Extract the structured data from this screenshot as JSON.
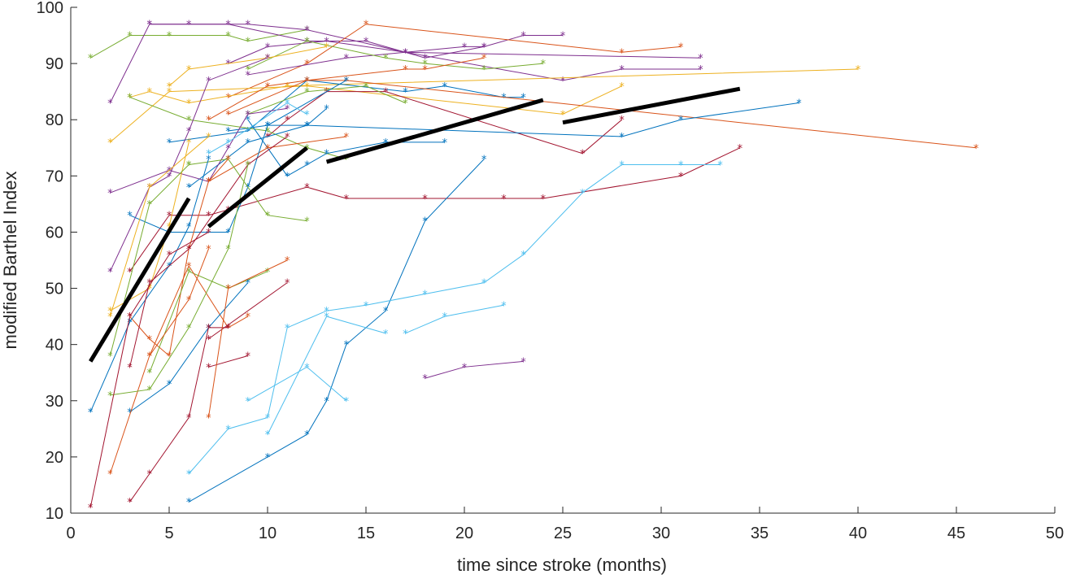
{
  "chart_data": {
    "type": "line",
    "title": "",
    "xlabel": "time since stroke (months)",
    "ylabel": "modified Barthel Index",
    "xlim": [
      0,
      50
    ],
    "ylim": [
      10,
      100
    ],
    "xticks": [
      0,
      5,
      10,
      15,
      20,
      25,
      30,
      35,
      40,
      45,
      50
    ],
    "yticks": [
      10,
      20,
      30,
      40,
      50,
      60,
      70,
      80,
      90,
      100
    ],
    "grid": false,
    "legend": "none",
    "marker": "*",
    "colors": [
      "#0072bd",
      "#d95319",
      "#edb120",
      "#7e2f8e",
      "#77ac30",
      "#4dbeee",
      "#a2142f"
    ],
    "series": [
      {
        "color": "#77ac30",
        "points": [
          [
            1,
            91
          ],
          [
            3,
            95
          ],
          [
            5,
            95
          ],
          [
            8,
            95
          ],
          [
            9,
            94
          ],
          [
            12,
            96
          ]
        ]
      },
      {
        "color": "#7e2f8e",
        "points": [
          [
            2,
            83
          ],
          [
            4,
            97
          ],
          [
            6,
            97
          ],
          [
            9,
            97
          ],
          [
            12,
            96
          ],
          [
            17,
            92
          ],
          [
            25,
            87
          ],
          [
            28,
            89
          ],
          [
            32,
            89
          ]
        ]
      },
      {
        "color": "#7e2f8e",
        "points": [
          [
            4,
            97
          ],
          [
            8,
            97
          ],
          [
            12,
            94
          ],
          [
            15,
            94
          ],
          [
            18,
            91
          ],
          [
            21,
            93
          ],
          [
            23,
            95
          ],
          [
            25,
            95
          ]
        ]
      },
      {
        "color": "#d95319",
        "points": [
          [
            8,
            84
          ],
          [
            12,
            90
          ],
          [
            15,
            97
          ],
          [
            28,
            92
          ],
          [
            31,
            93
          ]
        ]
      },
      {
        "color": "#7e2f8e",
        "points": [
          [
            8,
            90
          ],
          [
            10,
            93
          ],
          [
            13,
            94
          ],
          [
            17,
            92
          ],
          [
            20,
            93
          ],
          [
            21,
            93
          ]
        ]
      },
      {
        "color": "#7e2f8e",
        "points": [
          [
            9,
            88
          ],
          [
            14,
            91
          ],
          [
            17,
            92
          ],
          [
            32,
            91
          ]
        ]
      },
      {
        "color": "#77ac30",
        "points": [
          [
            9,
            89
          ],
          [
            12,
            94
          ],
          [
            16,
            91
          ],
          [
            18,
            90
          ],
          [
            21,
            89
          ],
          [
            24,
            90
          ]
        ]
      },
      {
        "color": "#edb120",
        "points": [
          [
            5,
            86
          ],
          [
            6,
            89
          ],
          [
            10,
            91
          ],
          [
            13,
            93
          ]
        ]
      },
      {
        "color": "#edb120",
        "points": [
          [
            3,
            84
          ],
          [
            4,
            85
          ],
          [
            6,
            83
          ],
          [
            11,
            86
          ],
          [
            40,
            89
          ]
        ]
      },
      {
        "color": "#edb120",
        "points": [
          [
            2,
            76
          ],
          [
            5,
            85
          ],
          [
            12,
            86
          ],
          [
            25,
            81
          ],
          [
            28,
            86
          ]
        ]
      },
      {
        "color": "#d95319",
        "points": [
          [
            8,
            81
          ],
          [
            12,
            87
          ],
          [
            17,
            89
          ],
          [
            18,
            89
          ],
          [
            21,
            91
          ]
        ]
      },
      {
        "color": "#0072bd",
        "points": [
          [
            5,
            76
          ],
          [
            9,
            78
          ],
          [
            12,
            87
          ],
          [
            17,
            85
          ],
          [
            19,
            86
          ],
          [
            22,
            84
          ],
          [
            23,
            84
          ]
        ]
      },
      {
        "color": "#d95319",
        "points": [
          [
            7,
            80
          ],
          [
            10,
            86
          ],
          [
            12,
            87
          ],
          [
            14,
            87
          ],
          [
            46,
            75
          ]
        ]
      },
      {
        "color": "#a2142f",
        "points": [
          [
            10,
            77
          ],
          [
            11,
            80
          ],
          [
            13,
            85
          ],
          [
            16,
            85
          ],
          [
            26,
            74
          ],
          [
            28,
            80
          ]
        ]
      },
      {
        "color": "#0072bd",
        "points": [
          [
            8,
            78
          ],
          [
            10,
            79
          ],
          [
            12,
            79
          ],
          [
            28,
            77
          ],
          [
            31,
            80
          ],
          [
            37,
            83
          ]
        ]
      },
      {
        "color": "#77ac30",
        "points": [
          [
            3,
            84
          ],
          [
            6,
            80
          ],
          [
            10,
            78
          ],
          [
            12,
            75
          ],
          [
            14,
            73
          ]
        ]
      },
      {
        "color": "#77ac30",
        "points": [
          [
            9,
            81
          ],
          [
            12,
            85
          ],
          [
            15,
            86
          ],
          [
            17,
            83
          ]
        ]
      },
      {
        "color": "#0072bd",
        "points": [
          [
            9,
            80
          ],
          [
            11,
            70
          ],
          [
            12,
            72
          ],
          [
            13,
            74
          ],
          [
            16,
            76
          ],
          [
            19,
            76
          ]
        ]
      },
      {
        "color": "#0072bd",
        "points": [
          [
            6,
            68
          ],
          [
            9,
            76
          ],
          [
            12,
            79
          ],
          [
            13,
            82
          ]
        ]
      },
      {
        "color": "#d95319",
        "points": [
          [
            7,
            69
          ],
          [
            10,
            75
          ],
          [
            14,
            77
          ]
        ]
      },
      {
        "color": "#7e2f8e",
        "points": [
          [
            2,
            67
          ],
          [
            5,
            71
          ],
          [
            7,
            69
          ],
          [
            8,
            75
          ],
          [
            9,
            81
          ],
          [
            11,
            82
          ]
        ]
      },
      {
        "color": "#7e2f8e",
        "points": [
          [
            2,
            53
          ],
          [
            4,
            68
          ],
          [
            5,
            70
          ],
          [
            6,
            78
          ],
          [
            7,
            87
          ],
          [
            10,
            91
          ]
        ]
      },
      {
        "color": "#a2142f",
        "points": [
          [
            3,
            53
          ],
          [
            5,
            63
          ],
          [
            7,
            63
          ],
          [
            8,
            64
          ],
          [
            12,
            68
          ],
          [
            14,
            66
          ],
          [
            18,
            66
          ],
          [
            22,
            66
          ],
          [
            24,
            66
          ],
          [
            31,
            70
          ],
          [
            34,
            75
          ]
        ]
      },
      {
        "color": "#0072bd",
        "points": [
          [
            3,
            63
          ],
          [
            5,
            60
          ],
          [
            8,
            60
          ],
          [
            9,
            68
          ],
          [
            10,
            79
          ],
          [
            14,
            87
          ]
        ]
      },
      {
        "color": "#4dbeee",
        "points": [
          [
            7,
            74
          ],
          [
            8,
            76
          ],
          [
            11,
            83
          ],
          [
            12,
            81
          ]
        ]
      },
      {
        "color": "#77ac30",
        "points": [
          [
            6,
            72
          ],
          [
            8,
            73
          ],
          [
            10,
            63
          ],
          [
            12,
            62
          ]
        ]
      },
      {
        "color": "#edb120",
        "points": [
          [
            2,
            45
          ],
          [
            4,
            68
          ],
          [
            7,
            77
          ]
        ]
      },
      {
        "color": "#edb120",
        "points": [
          [
            2,
            46
          ],
          [
            4,
            50
          ],
          [
            5,
            61
          ],
          [
            6,
            76
          ]
        ]
      },
      {
        "color": "#77ac30",
        "points": [
          [
            2,
            38
          ],
          [
            4,
            65
          ],
          [
            6,
            72
          ]
        ]
      },
      {
        "color": "#d95319",
        "points": [
          [
            3,
            45
          ],
          [
            4,
            41
          ],
          [
            5,
            38
          ],
          [
            6,
            57
          ],
          [
            7,
            69
          ],
          [
            8,
            73
          ]
        ]
      },
      {
        "color": "#0072bd",
        "points": [
          [
            1,
            28
          ],
          [
            3,
            44
          ],
          [
            5,
            54
          ],
          [
            6,
            61
          ],
          [
            7,
            73
          ]
        ]
      },
      {
        "color": "#77ac30",
        "points": [
          [
            4,
            35
          ],
          [
            6,
            53
          ],
          [
            8,
            50
          ],
          [
            10,
            53
          ]
        ]
      },
      {
        "color": "#d95319",
        "points": [
          [
            4,
            38
          ],
          [
            6,
            54
          ],
          [
            8,
            43
          ],
          [
            9,
            45
          ]
        ]
      },
      {
        "color": "#a2142f",
        "points": [
          [
            3,
            36
          ],
          [
            4,
            51
          ],
          [
            6,
            57
          ],
          [
            9,
            72
          ],
          [
            11,
            77
          ]
        ]
      },
      {
        "color": "#0072bd",
        "points": [
          [
            3,
            28
          ],
          [
            5,
            33
          ],
          [
            7,
            43
          ],
          [
            9,
            51
          ]
        ]
      },
      {
        "color": "#a2142f",
        "points": [
          [
            3,
            12
          ],
          [
            4,
            17
          ],
          [
            6,
            27
          ],
          [
            7,
            43
          ],
          [
            8,
            43
          ]
        ]
      },
      {
        "color": "#d95319",
        "points": [
          [
            2,
            17
          ],
          [
            4,
            38
          ],
          [
            6,
            48
          ],
          [
            7,
            57
          ]
        ]
      },
      {
        "color": "#77ac30",
        "points": [
          [
            2,
            31
          ],
          [
            4,
            32
          ],
          [
            6,
            43
          ],
          [
            8,
            57
          ],
          [
            9,
            72
          ]
        ]
      },
      {
        "color": "#a2142f",
        "points": [
          [
            1,
            11
          ],
          [
            3,
            45
          ],
          [
            5,
            56
          ],
          [
            7,
            60
          ]
        ]
      },
      {
        "color": "#a2142f",
        "points": [
          [
            7,
            36
          ],
          [
            9,
            38
          ]
        ]
      },
      {
        "color": "#a2142f",
        "points": [
          [
            7,
            41
          ],
          [
            11,
            51
          ]
        ]
      },
      {
        "color": "#d95319",
        "points": [
          [
            7,
            27
          ],
          [
            8,
            50
          ],
          [
            11,
            55
          ]
        ]
      },
      {
        "color": "#0072bd",
        "points": [
          [
            6,
            12
          ],
          [
            10,
            20
          ],
          [
            12,
            24
          ],
          [
            13,
            30
          ],
          [
            14,
            40
          ],
          [
            16,
            46
          ],
          [
            18,
            62
          ],
          [
            21,
            73
          ]
        ]
      },
      {
        "color": "#4dbeee",
        "points": [
          [
            6,
            17
          ],
          [
            8,
            25
          ],
          [
            10,
            27
          ],
          [
            11,
            43
          ],
          [
            13,
            46
          ],
          [
            15,
            47
          ],
          [
            18,
            49
          ],
          [
            21,
            51
          ],
          [
            23,
            56
          ],
          [
            26,
            67
          ],
          [
            28,
            72
          ],
          [
            31,
            72
          ],
          [
            33,
            72
          ]
        ]
      },
      {
        "color": "#4dbeee",
        "points": [
          [
            9,
            30
          ],
          [
            12,
            36
          ],
          [
            14,
            30
          ]
        ]
      },
      {
        "color": "#4dbeee",
        "points": [
          [
            10,
            24
          ],
          [
            13,
            45
          ],
          [
            16,
            42
          ]
        ]
      },
      {
        "color": "#4dbeee",
        "points": [
          [
            17,
            42
          ],
          [
            19,
            45
          ],
          [
            22,
            47
          ]
        ]
      },
      {
        "color": "#7e2f8e",
        "points": [
          [
            18,
            34
          ],
          [
            20,
            36
          ],
          [
            23,
            37
          ]
        ]
      }
    ],
    "trend_lines": [
      {
        "from": [
          1,
          37
        ],
        "to": [
          6,
          66
        ]
      },
      {
        "from": [
          7,
          61
        ],
        "to": [
          12,
          75
        ]
      },
      {
        "from": [
          13,
          72.5
        ],
        "to": [
          24,
          83.5
        ]
      },
      {
        "from": [
          25,
          79.5
        ],
        "to": [
          34,
          85.5
        ]
      }
    ]
  }
}
